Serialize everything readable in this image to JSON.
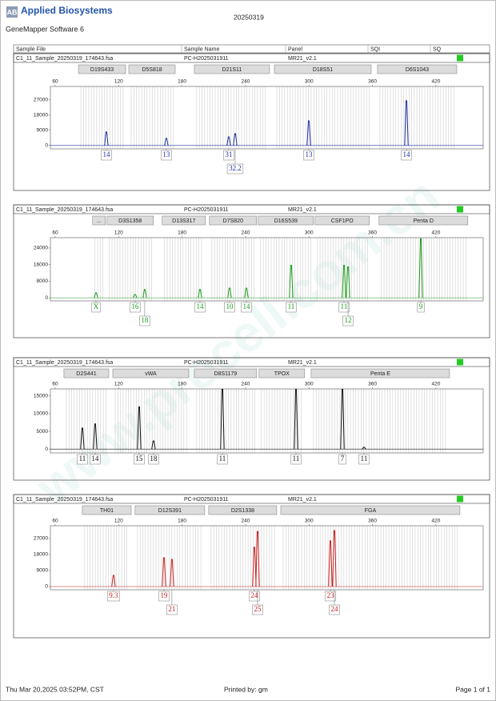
{
  "header": {
    "logo": "AB",
    "brand": "Applied Biosystems",
    "software": "GeneMapper Software 6",
    "date": "20250319"
  },
  "columns": [
    "Sample File",
    "Sample Name",
    "Panel",
    "SQI",
    "SQ"
  ],
  "panels": [
    {
      "sample_file": "C1_11_Sample_20250319_174643.fsa",
      "sample_name": "PC-H2025031911",
      "panel": "MR21_v2.1",
      "color": "#1f2f9f",
      "xlim": [
        55.5,
        464.7
      ],
      "xticks": [
        60,
        120,
        180,
        240,
        300,
        360,
        420
      ],
      "ylim": [
        -2000,
        35000
      ],
      "yticks": [
        0,
        9000,
        18000,
        27000
      ],
      "markers": [
        {
          "name": "D19S433",
          "range": [
            82,
            126.6
          ]
        },
        {
          "name": "D5S818",
          "range": [
            129.6,
            173.5
          ]
        },
        {
          "name": "D21S11",
          "range": [
            191.6,
            262.7
          ]
        },
        {
          "name": "D18S51",
          "range": [
            267.3,
            358.8
          ]
        },
        {
          "name": "D6S1043",
          "range": [
            364.8,
            439.7
          ]
        }
      ],
      "peaks": [
        {
          "size": 108.4,
          "height": 8000,
          "allele": "14"
        },
        {
          "size": 165.1,
          "height": 4200,
          "allele": "13"
        },
        {
          "size": 224.1,
          "height": 5100,
          "allele": "31"
        },
        {
          "size": 230.2,
          "height": 7000,
          "allele": "32.2"
        },
        {
          "size": 299.8,
          "height": 14600,
          "allele": "13"
        },
        {
          "size": 392.1,
          "height": 26500,
          "allele": "14"
        }
      ]
    },
    {
      "sample_file": "C1_11_Sample_20250319_174643.fsa",
      "sample_name": "PC-H2025031911",
      "panel": "MR21_v2.1",
      "color": "#1a9a1a",
      "xlim": [
        55.5,
        464.7
      ],
      "xticks": [
        60,
        120,
        180,
        240,
        300,
        360,
        420
      ],
      "ylim": [
        -1500,
        29000
      ],
      "yticks": [
        0,
        8000,
        16000,
        24000
      ],
      "markers": [
        {
          "name": "...",
          "range": [
            95.4,
            107.5
          ]
        },
        {
          "name": "D3S1358",
          "range": [
            109,
            152.9
          ]
        },
        {
          "name": "D13S317",
          "range": [
            161.2,
            202.1
          ]
        },
        {
          "name": "D7S820",
          "range": [
            205.9,
            250.5
          ]
        },
        {
          "name": "D16S539",
          "range": [
            252,
            304.2
          ]
        },
        {
          "name": "CSF1PO",
          "range": [
            305.7,
            357.1
          ]
        },
        {
          "name": "Penta D",
          "range": [
            366.2,
            450.2
          ]
        }
      ],
      "peaks": [
        {
          "size": 98.6,
          "height": 2400,
          "allele": "X"
        },
        {
          "size": 135.6,
          "height": 1600,
          "allele": "16"
        },
        {
          "size": 144.7,
          "height": 4000,
          "allele": "18"
        },
        {
          "size": 196.9,
          "height": 4000,
          "allele": "14"
        },
        {
          "size": 224.9,
          "height": 4700,
          "allele": "10"
        },
        {
          "size": 240.8,
          "height": 4700,
          "allele": "14"
        },
        {
          "size": 283.1,
          "height": 15700,
          "allele": "11"
        },
        {
          "size": 333.1,
          "height": 15700,
          "allele": "11"
        },
        {
          "size": 336.9,
          "height": 14900,
          "allele": "12"
        },
        {
          "size": 405.7,
          "height": 28500,
          "allele": "9"
        }
      ]
    },
    {
      "sample_file": "C1_11_Sample_20250319_174643.fsa",
      "sample_name": "PC-H2025031911",
      "panel": "MR21_v2.1",
      "color": "#111111",
      "xlim": [
        55.5,
        464.7
      ],
      "xticks": [
        60,
        120,
        180,
        240,
        300,
        360,
        420
      ],
      "ylim": [
        -1100,
        17000
      ],
      "yticks": [
        0,
        5000,
        10000,
        15000
      ],
      "markers": [
        {
          "name": "D2S441",
          "range": [
            68.3,
            110.7
          ]
        },
        {
          "name": "vWA",
          "range": [
            114.5,
            186.3
          ]
        },
        {
          "name": "D8S1179",
          "range": [
            191.6,
            250.5
          ]
        },
        {
          "name": "TPOX",
          "range": [
            252.8,
            295.9
          ]
        },
        {
          "name": "Penta E",
          "range": [
            302,
            432.9
          ]
        }
      ],
      "peaks": [
        {
          "size": 85.7,
          "height": 5900,
          "allele": "11"
        },
        {
          "size": 97.8,
          "height": 7100,
          "allele": "14"
        },
        {
          "size": 139.4,
          "height": 11900,
          "allele": "15"
        },
        {
          "size": 153,
          "height": 2300,
          "allele": "18"
        },
        {
          "size": 218.1,
          "height": 16900,
          "allele": "11"
        },
        {
          "size": 287.7,
          "height": 16900,
          "allele": "11"
        },
        {
          "size": 331.6,
          "height": 16900,
          "allele": "7"
        },
        {
          "size": 352,
          "height": 500,
          "allele": "11"
        }
      ]
    },
    {
      "sample_file": "C1_11_Sample_20250319_174643.fsa",
      "sample_name": "PC-H2025031911",
      "panel": "MR21_v2.1",
      "color": "#c62020",
      "xlim": [
        55.5,
        464.7
      ],
      "xticks": [
        60,
        120,
        180,
        240,
        300,
        360,
        420
      ],
      "ylim": [
        -1800,
        34200
      ],
      "yticks": [
        0,
        9000,
        18000,
        27000
      ],
      "markers": [
        {
          "name": "TH01",
          "range": [
            85.7,
            131.9
          ]
        },
        {
          "name": "D12S391",
          "range": [
            135.6,
            201.4
          ]
        },
        {
          "name": "D2S1338",
          "range": [
            205.2,
            269.5
          ]
        },
        {
          "name": "FGA",
          "range": [
            273.3,
            442.7
          ]
        }
      ],
      "peaks": [
        {
          "size": 115.2,
          "height": 6300,
          "allele": "9.3"
        },
        {
          "size": 162.9,
          "height": 16200,
          "allele": "19"
        },
        {
          "size": 170.4,
          "height": 15300,
          "allele": "21"
        },
        {
          "size": 248.3,
          "height": 22100,
          "allele": "24"
        },
        {
          "size": 251.4,
          "height": 31000,
          "allele": "25"
        },
        {
          "size": 320.2,
          "height": 25700,
          "allele": "23"
        },
        {
          "size": 324,
          "height": 31500,
          "allele": "24"
        }
      ]
    }
  ],
  "footer": {
    "printed_at": "Thu Mar 20,2025 03:52PM, CST",
    "printed_by": "Printed by: gm",
    "page": "Page 1 of 1"
  },
  "watermark": "www.procell.com.cn"
}
